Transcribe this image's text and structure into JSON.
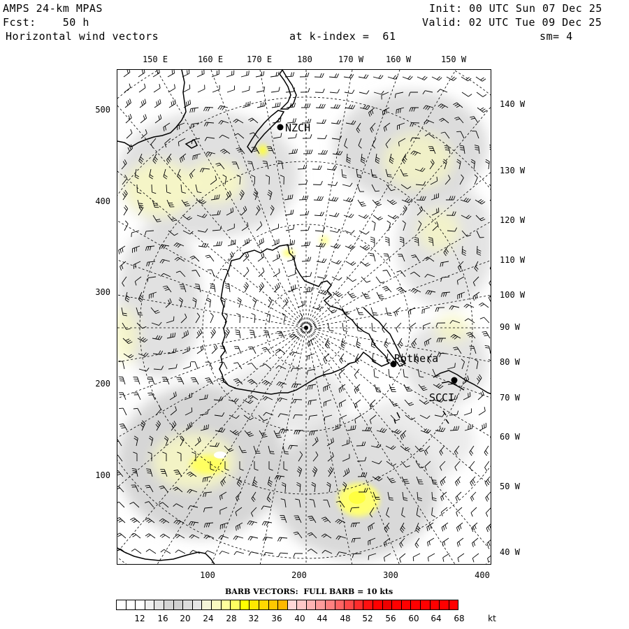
{
  "header": {
    "model": "AMPS 24-km MPAS",
    "forecast": "Fcst:    50 h",
    "field": "Horizontal wind vectors",
    "init": "Init: 00 UTC Sun 07 Dec 25",
    "valid": "Valid: 02 UTC Tue 09 Dec 25",
    "level": "at k-index =  61",
    "smoothing": "sm= 4"
  },
  "axes": {
    "x_ticks": [
      "100",
      "200",
      "300",
      "400"
    ],
    "y_ticks": [
      "100",
      "200",
      "300",
      "400",
      "500"
    ],
    "top_longitudes": [
      "150 E",
      "160 E",
      "170 E",
      "180",
      "170 W",
      "160 W",
      "150 W"
    ],
    "right_longitudes": [
      "140 W",
      "130 W",
      "120 W",
      "110 W",
      "100 W",
      "90 W",
      "80 W",
      "70 W",
      "60 W",
      "50 W",
      "40 W"
    ]
  },
  "stations": [
    {
      "id": "NZCH",
      "label": "NZCH"
    },
    {
      "id": "rothera",
      "label": "Rothera"
    },
    {
      "id": "scci",
      "label": "SCCI"
    }
  ],
  "colorbar": {
    "title": "BARB VECTORS:  FULL BARB = 10 kts",
    "tick_labels": [
      "12",
      "16",
      "20",
      "24",
      "28",
      "32",
      "36",
      "40",
      "44",
      "48",
      "52",
      "56",
      "60",
      "64",
      "68"
    ],
    "unit": "kt",
    "colors": [
      "#ffffff",
      "#ffffff",
      "#ffffff",
      "#f0f0f0",
      "#e2e2e2",
      "#d4d4d4",
      "#d0d0d0",
      "#dcdcdc",
      "#e6e6e6",
      "#f4f4d8",
      "#fafac0",
      "#ffff9c",
      "#ffff60",
      "#ffff00",
      "#ffe800",
      "#ffd800",
      "#ffc800",
      "#ffb800",
      "#ffd8d8",
      "#ffc8c8",
      "#ffb4b4",
      "#ff9c9c",
      "#ff8080",
      "#ff6464",
      "#ff4848",
      "#ff2c2c",
      "#ff1010",
      "#ff0000",
      "#ee0000",
      "#ff0000",
      "#ff0000",
      "#ff0000",
      "#ff0000",
      "#ff0000",
      "#ff0000",
      "#ff0000"
    ]
  }
}
